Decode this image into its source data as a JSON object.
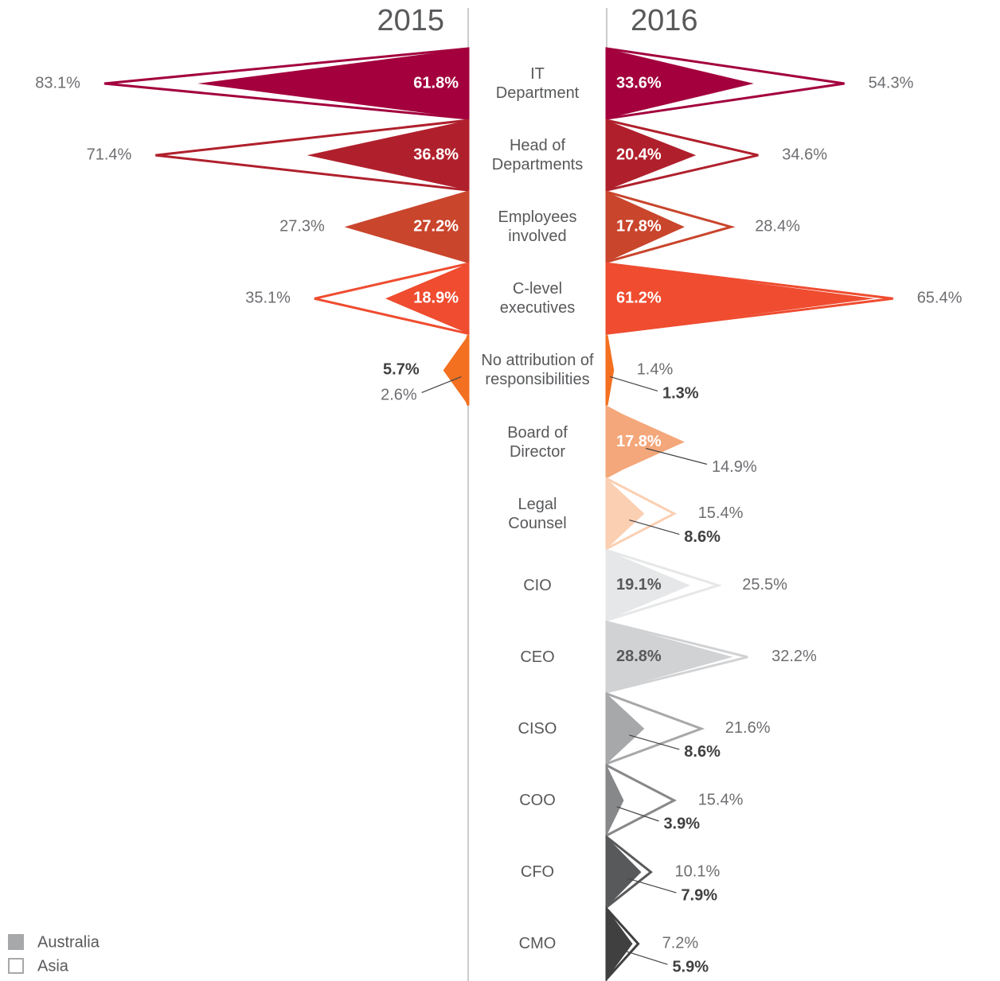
{
  "chart_data": {
    "type": "mirrored-triangle",
    "categories": [
      "IT\nDepartment",
      "Head of\nDepartments",
      "Employees\ninvolved",
      "C-level\nexecutives",
      "No attribution of\nresponsibilities",
      "Board of\nDirector",
      "Legal\nCounsel",
      "CIO",
      "CEO",
      "CISO",
      "COO",
      "CFO",
      "CMO"
    ],
    "colors": [
      "#a3003d",
      "#b0202c",
      "#c9452c",
      "#ef4c30",
      "#f37021",
      "#f4a77a",
      "#fbcfb2",
      "#e6e7e8",
      "#d1d2d4",
      "#a7a8aa",
      "#87888a",
      "#58595b",
      "#404041"
    ],
    "panels": [
      {
        "title": "2015",
        "side": "left",
        "series": [
          {
            "name": "Australia",
            "style": "filled",
            "values": [
              61.8,
              36.8,
              27.2,
              18.9,
              5.7,
              null,
              null,
              null,
              null,
              null,
              null,
              null,
              null
            ],
            "value_labels": [
              "61.8%",
              "36.8%",
              "27.2%",
              "18.9%",
              "5.7%",
              null,
              null,
              null,
              null,
              null,
              null,
              null,
              null
            ]
          },
          {
            "name": "Asia",
            "style": "outline",
            "values": [
              83.1,
              71.4,
              27.3,
              35.1,
              2.6,
              null,
              null,
              null,
              null,
              null,
              null,
              null,
              null
            ],
            "value_labels": [
              "83.1%",
              "71.4%",
              "27.3%",
              "35.1%",
              "2.6%",
              null,
              null,
              null,
              null,
              null,
              null,
              null,
              null
            ]
          }
        ]
      },
      {
        "title": "2016",
        "side": "right",
        "series": [
          {
            "name": "Australia",
            "style": "filled",
            "values": [
              33.6,
              20.4,
              17.8,
              61.2,
              1.3,
              17.8,
              8.6,
              19.1,
              28.8,
              8.6,
              3.9,
              7.9,
              5.9
            ],
            "value_labels": [
              "33.6%",
              "20.4%",
              "17.8%",
              "61.2%",
              "1.3%",
              "17.8%",
              "8.6%",
              "19.1%",
              "28.8%",
              "8.6%",
              "3.9%",
              "7.9%",
              "5.9%"
            ]
          },
          {
            "name": "Asia",
            "style": "outline",
            "values": [
              54.3,
              34.6,
              28.4,
              65.4,
              1.4,
              14.9,
              15.4,
              25.5,
              32.2,
              21.6,
              15.4,
              10.1,
              7.2
            ],
            "value_labels": [
              "54.3%",
              "34.6%",
              "28.4%",
              "65.4%",
              "1.4%",
              "14.9%",
              "15.4%",
              "25.5%",
              "32.2%",
              "21.6%",
              "15.4%",
              "10.1%",
              "7.2%"
            ]
          }
        ]
      }
    ]
  }
}
